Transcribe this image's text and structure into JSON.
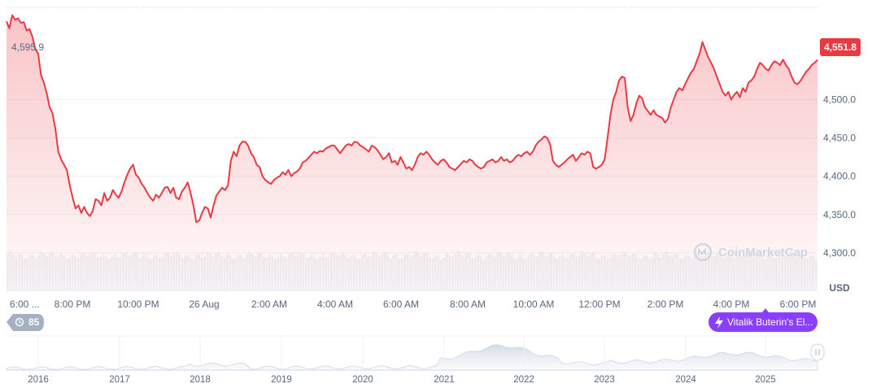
{
  "chart_data": {
    "type": "line",
    "start_label": "4,595.9",
    "current_price": 4551.8,
    "current_price_label": "4,551.8",
    "y_ticks": [
      "4,300.0",
      "4,350.0",
      "4,400.0",
      "4,450.0",
      "4,500.0"
    ],
    "y_unit": "USD",
    "ylim": [
      4250,
      4615
    ],
    "x_tick_labels": [
      "6:00 ...",
      "8:00 PM",
      "10:00 PM",
      "26 Aug",
      "2:00 AM",
      "4:00 AM",
      "6:00 AM",
      "8:00 AM",
      "10:00 AM",
      "12:00 PM",
      "2:00 PM",
      "4:00 PM",
      "6:00 PM"
    ],
    "series": [
      {
        "values": [
          4602,
          4593,
          4610,
          4604,
          4606,
          4600,
          4601,
          4590,
          4592,
          4582,
          4566,
          4560,
          4532,
          4522,
          4508,
          4490,
          4482,
          4462,
          4432,
          4422,
          4415,
          4408,
          4388,
          4372,
          4358,
          4362,
          4352,
          4360,
          4352,
          4348,
          4355,
          4370,
          4368,
          4362,
          4378,
          4368,
          4372,
          4382,
          4376,
          4372,
          4380,
          4392,
          4402,
          4410,
          4415,
          4402,
          4398,
          4390,
          4385,
          4378,
          4372,
          4368,
          4376,
          4372,
          4378,
          4385,
          4386,
          4378,
          4385,
          4372,
          4370,
          4380,
          4385,
          4392,
          4378,
          4362,
          4340,
          4342,
          4352,
          4360,
          4358,
          4346,
          4362,
          4375,
          4380,
          4385,
          4382,
          4388,
          4420,
          4432,
          4426,
          4440,
          4445,
          4445,
          4440,
          4430,
          4425,
          4415,
          4412,
          4400,
          4395,
          4392,
          4390,
          4395,
          4398,
          4400,
          4405,
          4402,
          4408,
          4400,
          4404,
          4406,
          4410,
          4418,
          4420,
          4424,
          4428,
          4432,
          4430,
          4433,
          4432,
          4436,
          4438,
          4440,
          4440,
          4435,
          4430,
          4435,
          4440,
          4442,
          4440,
          4445,
          4444,
          4440,
          4438,
          4435,
          4432,
          4440,
          4438,
          4434,
          4428,
          4422,
          4425,
          4430,
          4418,
          4420,
          4415,
          4425,
          4418,
          4410,
          4412,
          4408,
          4415,
          4425,
          4430,
          4428,
          4432,
          4428,
          4422,
          4418,
          4415,
          4420,
          4422,
          4418,
          4412,
          4410,
          4408,
          4412,
          4416,
          4420,
          4418,
          4422,
          4420,
          4415,
          4412,
          4410,
          4412,
          4418,
          4420,
          4422,
          4418,
          4420,
          4425,
          4420,
          4422,
          4418,
          4420,
          4425,
          4428,
          4426,
          4430,
          4432,
          4428,
          4432,
          4440,
          4445,
          4448,
          4452,
          4450,
          4442,
          4420,
          4415,
          4412,
          4415,
          4418,
          4422,
          4425,
          4428,
          4420,
          4425,
          4430,
          4428,
          4432,
          4430,
          4412,
          4410,
          4412,
          4415,
          4422,
          4450,
          4480,
          4500,
          4510,
          4525,
          4530,
          4528,
          4490,
          4472,
          4480,
          4495,
          4505,
          4502,
          4490,
          4485,
          4480,
          4486,
          4480,
          4478,
          4476,
          4470,
          4475,
          4490,
          4500,
          4510,
          4515,
          4512,
          4520,
          4528,
          4535,
          4540,
          4550,
          4560,
          4575,
          4565,
          4555,
          4548,
          4540,
          4530,
          4520,
          4510,
          4505,
          4510,
          4500,
          4506,
          4510,
          4503,
          4515,
          4510,
          4522,
          4525,
          4530,
          4540,
          4548,
          4545,
          4540,
          4538,
          4545,
          4550,
          4548,
          4545,
          4552,
          4545,
          4540,
          4530,
          4522,
          4520,
          4524,
          4530,
          4536,
          4540,
          4545,
          4548,
          4551.8
        ]
      }
    ],
    "volume_bar_count": 288,
    "nav_year_labels": [
      "2016",
      "2017",
      "2018",
      "2019",
      "2020",
      "2021",
      "2022",
      "2023",
      "2024",
      "2025"
    ],
    "grid": true,
    "line_color": "#ea3943"
  },
  "badges": {
    "history_count": "85",
    "event_label": "Vitalik Buterin's El..."
  },
  "watermark": "CoinMarketCap",
  "colors": {
    "line": "#ea3943",
    "event_pill": "#8a3ffc",
    "history_badge": "#a6b0c3",
    "grid": "#eff2f5"
  }
}
